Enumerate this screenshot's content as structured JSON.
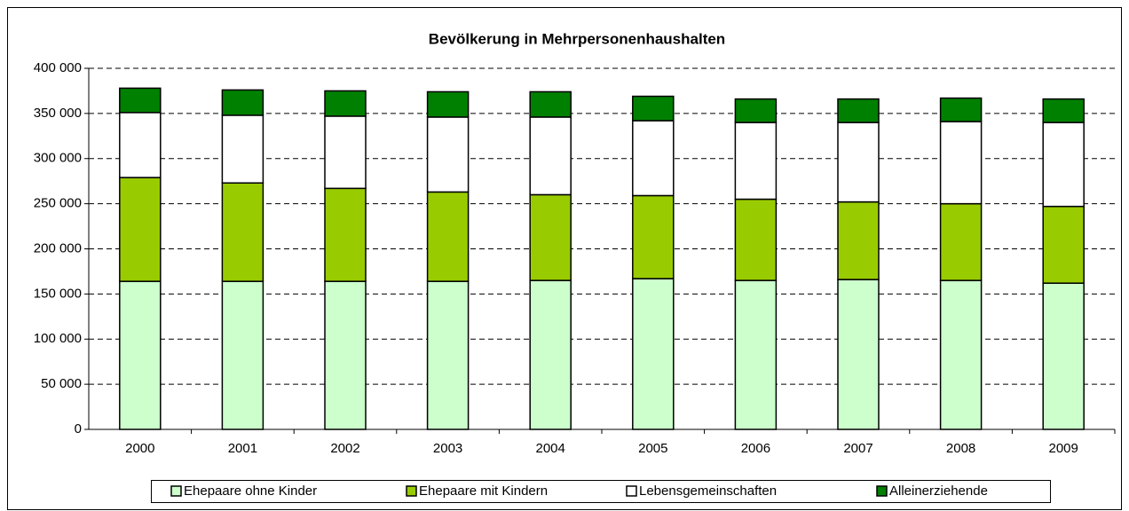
{
  "chart_data": {
    "type": "stacked_bar",
    "title": "Bevölkerung in Mehrpersonenhaushalten",
    "categories": [
      "2000",
      "2001",
      "2002",
      "2003",
      "2004",
      "2005",
      "2006",
      "2007",
      "2008",
      "2009"
    ],
    "series": [
      {
        "name": "Ehepaare ohne Kinder",
        "color": "#ccffcc",
        "values": [
          164000,
          164000,
          164000,
          164000,
          165000,
          167000,
          165000,
          166000,
          165000,
          162000
        ]
      },
      {
        "name": "Ehepaare mit Kindern",
        "color": "#99cc00",
        "values": [
          115000,
          109000,
          103000,
          99000,
          95000,
          92000,
          90000,
          86000,
          85000,
          85000
        ]
      },
      {
        "name": "Lebensgemeinschaften",
        "color": "#ffffff",
        "values": [
          72000,
          75000,
          80000,
          83000,
          86000,
          83000,
          85000,
          88000,
          91000,
          93000
        ]
      },
      {
        "name": "Alleinerziehende",
        "color": "#008000",
        "values": [
          27000,
          28000,
          28000,
          28000,
          28000,
          27000,
          26000,
          26000,
          26000,
          26000
        ]
      }
    ],
    "ylim": [
      0,
      400000
    ],
    "yticks": [
      0,
      {
        "value": 50000,
        "label": "50 000"
      },
      {
        "value": 100000,
        "label": "100 000"
      },
      {
        "value": 150000,
        "label": "150 000"
      },
      {
        "value": 200000,
        "label": "200 000"
      },
      {
        "value": 250000,
        "label": "250 000"
      },
      {
        "value": 300000,
        "label": "300 000"
      },
      {
        "value": 350000,
        "label": "350 000"
      },
      {
        "value": 400000,
        "label": "400 000"
      }
    ],
    "grid": true,
    "legend": "bottom"
  }
}
